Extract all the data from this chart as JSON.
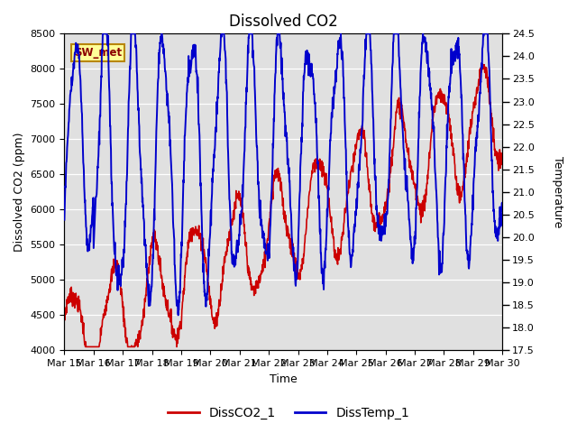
{
  "title": "Dissolved CO2",
  "xlabel": "Time",
  "ylabel_left": "Dissolved CO2 (ppm)",
  "ylabel_right": "Temperature",
  "station_label": "SW_met",
  "ylim_left": [
    4000,
    8500
  ],
  "ylim_right": [
    17.5,
    24.5
  ],
  "yticks_left": [
    4000,
    4500,
    5000,
    5500,
    6000,
    6500,
    7000,
    7500,
    8000,
    8500
  ],
  "yticks_right": [
    17.5,
    18.0,
    18.5,
    19.0,
    19.5,
    20.0,
    20.5,
    21.0,
    21.5,
    22.0,
    22.5,
    23.0,
    23.5,
    24.0,
    24.5
  ],
  "xtick_labels": [
    "Mar 15",
    "Mar 16",
    "Mar 17",
    "Mar 18",
    "Mar 19",
    "Mar 20",
    "Mar 21",
    "Mar 22",
    "Mar 23",
    "Mar 24",
    "Mar 25",
    "Mar 26",
    "Mar 27",
    "Mar 28",
    "Mar 29",
    "Mar 30"
  ],
  "co2_color": "#cc0000",
  "temp_color": "#0000cc",
  "legend_co2": "DissCO2_1",
  "legend_temp": "DissTemp_1",
  "background_color": "#ffffff",
  "plot_bg_color": "#e0e0e0",
  "grid_color": "#ffffff",
  "co2_linewidth": 1.2,
  "temp_linewidth": 1.4,
  "title_fontsize": 12,
  "axis_fontsize": 9,
  "tick_fontsize": 8,
  "legend_fontsize": 10,
  "figsize": [
    6.4,
    4.8
  ],
  "dpi": 100
}
